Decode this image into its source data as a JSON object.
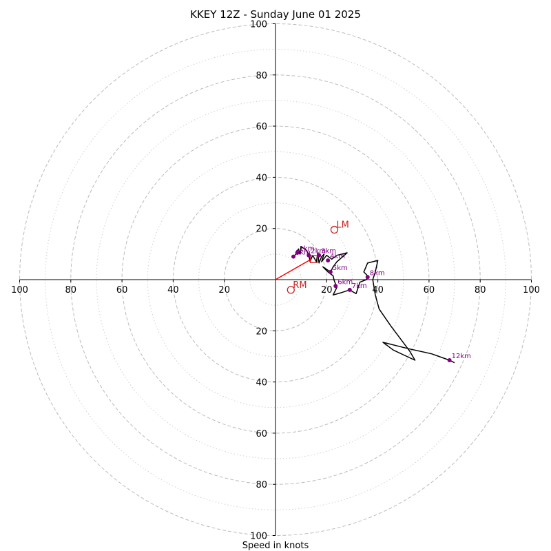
{
  "chart_data": {
    "type": "hodograph",
    "title": "KKEY 12Z - Sunday June 01 2025",
    "xlabel": "Speed in knots",
    "range": [
      -100,
      100
    ],
    "major_rings": [
      20,
      40,
      60,
      80,
      100
    ],
    "minor_rings": [
      10,
      30,
      50,
      70,
      90
    ],
    "tick_labels": {
      "x": [
        "100",
        "80",
        "60",
        "40",
        "20",
        "20",
        "40",
        "60",
        "80",
        "100"
      ],
      "y": [
        "100",
        "80",
        "60",
        "40",
        "20",
        "20",
        "40",
        "60",
        "80",
        "100"
      ]
    },
    "tick_values": [
      -100,
      -80,
      -60,
      -40,
      -20,
      20,
      40,
      60,
      80,
      100
    ],
    "hodograph": [
      [
        7.0,
        9.0
      ],
      [
        8.0,
        10.0
      ],
      [
        9.0,
        12.0
      ],
      [
        9.5,
        10.0
      ],
      [
        10.0,
        13.0
      ],
      [
        12.0,
        11.5
      ],
      [
        13.0,
        10.0
      ],
      [
        13.5,
        7.0
      ],
      [
        14.5,
        9.5
      ],
      [
        16.0,
        7.0
      ],
      [
        16.5,
        10.5
      ],
      [
        17.0,
        6.5
      ],
      [
        18.0,
        9.0
      ],
      [
        19.0,
        10.0
      ],
      [
        18.0,
        7.0
      ],
      [
        20.0,
        9.5
      ],
      [
        22.0,
        8.0
      ],
      [
        24.0,
        9.5
      ],
      [
        28.0,
        10.5
      ],
      [
        24.0,
        7.0
      ],
      [
        22.5,
        5.0
      ],
      [
        21.5,
        3.0
      ],
      [
        18.5,
        5.0
      ],
      [
        20.5,
        3.0
      ],
      [
        22.5,
        1.5
      ],
      [
        23.0,
        -0.5
      ],
      [
        24.0,
        -3.0
      ],
      [
        22.5,
        -6.0
      ],
      [
        26.0,
        -5.0
      ],
      [
        29.0,
        -4.0
      ],
      [
        31.5,
        -5.5
      ],
      [
        33.0,
        -1.0
      ],
      [
        35.5,
        0.0
      ],
      [
        36.0,
        1.5
      ],
      [
        34.5,
        3.0
      ],
      [
        36.0,
        6.5
      ],
      [
        40.0,
        7.5
      ],
      [
        39.0,
        3.0
      ],
      [
        38.0,
        0.0
      ],
      [
        39.0,
        -6.0
      ],
      [
        40.5,
        -11.5
      ],
      [
        45.0,
        -18.0
      ],
      [
        49.5,
        -24.0
      ],
      [
        52.5,
        -28.0
      ],
      [
        54.5,
        -31.5
      ],
      [
        46.0,
        -27.5
      ],
      [
        42.0,
        -24.5
      ],
      [
        52.0,
        -27.0
      ],
      [
        61.0,
        -29.0
      ],
      [
        68.0,
        -31.5
      ],
      [
        70.0,
        -32.5
      ]
    ],
    "km_markers": [
      {
        "label": "0km",
        "u": 7.0,
        "v": 9.0
      },
      {
        "label": "1km",
        "u": 8.5,
        "v": 10.5
      },
      {
        "label": "2km",
        "u": 13.0,
        "v": 9.5
      },
      {
        "label": "3km",
        "u": 17.0,
        "v": 9.5
      },
      {
        "label": "4km",
        "u": 20.5,
        "v": 7.5
      },
      {
        "label": "5km",
        "u": 21.5,
        "v": 3.0
      },
      {
        "label": "6km",
        "u": 23.5,
        "v": -2.5
      },
      {
        "label": "7km",
        "u": 29.0,
        "v": -4.0
      },
      {
        "label": "8km",
        "u": 36.0,
        "v": 1.0
      },
      {
        "label": "12km",
        "u": 68.0,
        "v": -31.5
      }
    ],
    "storm_motions": [
      {
        "label": "LM",
        "u": 23.0,
        "v": 19.5
      },
      {
        "label": "RM",
        "u": 6.0,
        "v": -4.0
      }
    ],
    "mean_wind": {
      "u": 15.0,
      "v": 8.0
    },
    "vector": {
      "from": [
        0,
        0
      ],
      "to": [
        14.0,
        8.0
      ]
    },
    "colors": {
      "hodograph": "#000000",
      "markers": "#800080",
      "storm_motion": "#cc2222",
      "vector": "#ff0000",
      "major_ring": "#bbbbbb",
      "minor_ring": "#d0d0d0"
    }
  }
}
